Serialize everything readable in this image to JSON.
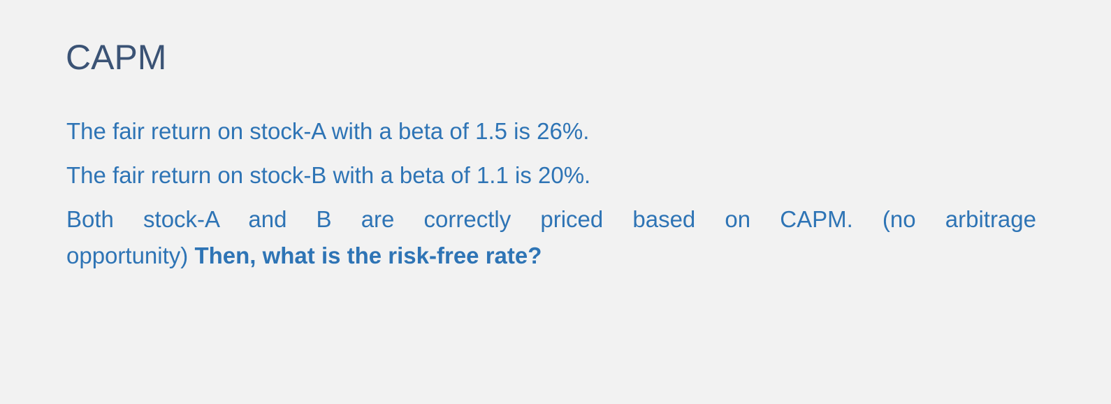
{
  "slide": {
    "title": "CAPM",
    "paragraphs": [
      "The fair return on stock-A with a beta of 1.5 is 26%.",
      "The fair return on stock-B with a beta of 1.1 is 20%."
    ],
    "question": {
      "line1": "Both stock-A and B are correctly priced based on CAPM. (no arbitrage",
      "line2": "opportunity) ",
      "bold": "Then, what is the risk-free rate?"
    },
    "colors": {
      "title": "#3b5375",
      "body": "#2e74b5",
      "background": "#f2f2f2"
    }
  }
}
